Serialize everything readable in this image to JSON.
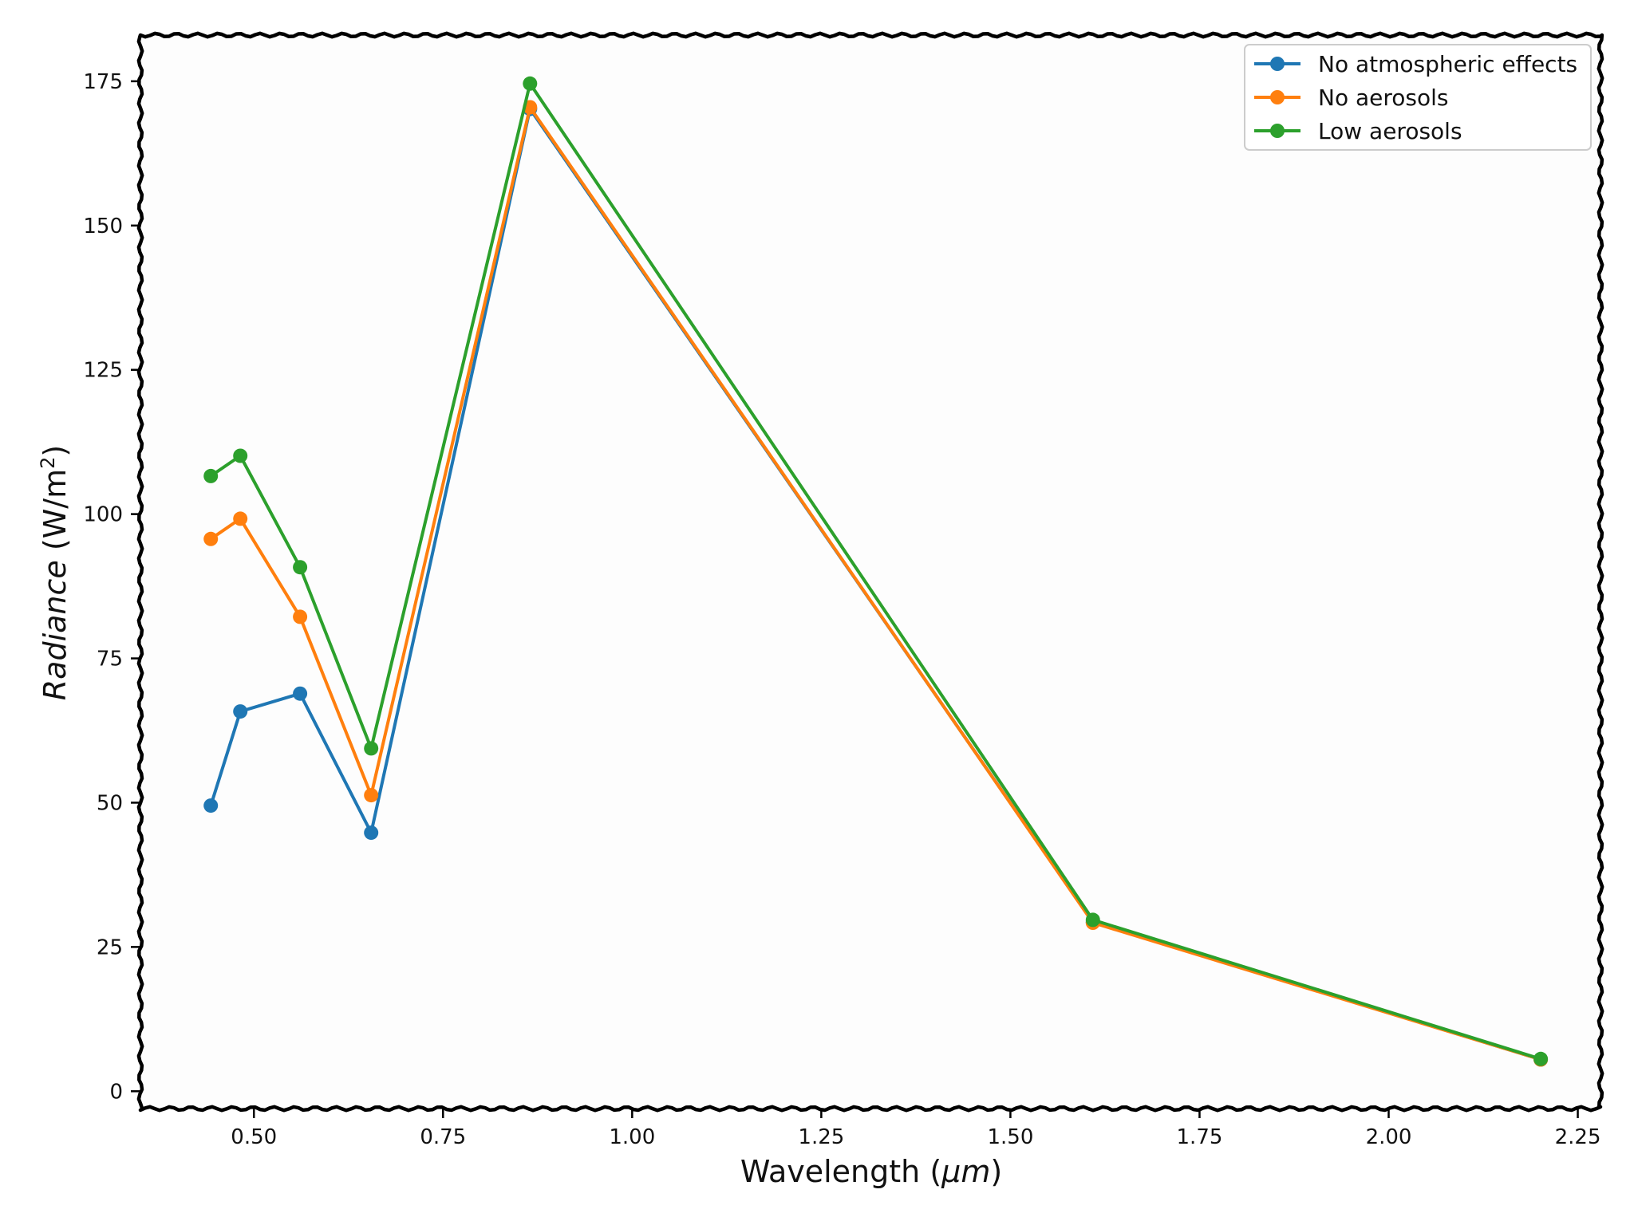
{
  "chart_data": {
    "type": "line",
    "title": "",
    "xlabel": "Wavelength",
    "xlabel_unit": "μm",
    "ylabel": "Radiance",
    "ylabel_unit_base": "W/m",
    "ylabel_unit_exp": "2",
    "xlim": [
      0.35,
      2.28
    ],
    "ylim": [
      -3,
      183
    ],
    "x_ticks": [
      0.5,
      0.75,
      1.0,
      1.25,
      1.5,
      1.75,
      2.0,
      2.25
    ],
    "x_tick_labels": [
      "0.50",
      "0.75",
      "1.00",
      "1.25",
      "1.50",
      "1.75",
      "2.00",
      "2.25"
    ],
    "y_ticks": [
      0,
      25,
      50,
      75,
      100,
      125,
      150,
      175
    ],
    "y_tick_labels": [
      "0",
      "25",
      "50",
      "75",
      "100",
      "125",
      "150",
      "175"
    ],
    "grid": false,
    "legend_position": "top-right",
    "x": [
      0.443,
      0.482,
      0.561,
      0.655,
      0.865,
      1.609,
      2.201
    ],
    "series": [
      {
        "name": "No atmospheric effects",
        "color": "#1f77b4",
        "values": [
          49.5,
          65.8,
          68.9,
          44.8,
          170.2,
          29.3,
          5.5
        ]
      },
      {
        "name": "No aerosols",
        "color": "#ff7f0e",
        "values": [
          95.7,
          99.2,
          82.2,
          51.3,
          170.5,
          29.2,
          5.5
        ]
      },
      {
        "name": "Low aerosols",
        "color": "#2ca02c",
        "values": [
          106.6,
          110.1,
          90.8,
          59.4,
          174.6,
          29.7,
          5.6
        ]
      }
    ]
  }
}
